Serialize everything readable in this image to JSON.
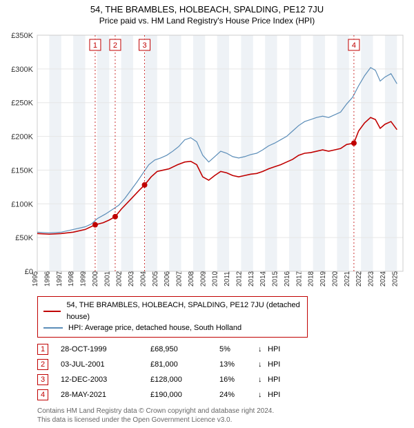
{
  "title": "54, THE BRAMBLES, HOLBEACH, SPALDING, PE12 7JU",
  "subtitle": "Price paid vs. HM Land Registry's House Price Index (HPI)",
  "chart": {
    "type": "line",
    "background_color": "#ffffff",
    "plot_border_color": "#cccccc",
    "grid_color": "#e6e6e6",
    "shade_color": "#eef2f6",
    "title_fontsize": 13,
    "subtitle_fontsize": 12,
    "label_fontsize": 11,
    "x_years": [
      "1995",
      "1996",
      "1997",
      "1998",
      "1999",
      "2000",
      "2001",
      "2002",
      "2003",
      "2004",
      "2005",
      "2006",
      "2007",
      "2008",
      "2009",
      "2010",
      "2011",
      "2012",
      "2013",
      "2014",
      "2015",
      "2016",
      "2017",
      "2018",
      "2019",
      "2020",
      "2021",
      "2022",
      "2023",
      "2024",
      "2025"
    ],
    "y_ticks": [
      0,
      50000,
      100000,
      150000,
      200000,
      250000,
      300000,
      350000
    ],
    "y_tick_labels": [
      "£0",
      "£50K",
      "£100K",
      "£150K",
      "£200K",
      "£250K",
      "£300K",
      "£350K"
    ],
    "ylim": [
      0,
      350000
    ],
    "xlim": [
      1995,
      2025.5
    ],
    "series": [
      {
        "name": "property",
        "label": "54, THE BRAMBLES, HOLBEACH, SPALDING, PE12 7JU (detached house)",
        "color": "#c00000",
        "line_width": 1.6,
        "data": [
          [
            1995,
            56000
          ],
          [
            1996,
            55000
          ],
          [
            1997,
            56000
          ],
          [
            1998,
            58000
          ],
          [
            1999,
            62000
          ],
          [
            1999.83,
            68950
          ],
          [
            2000.5,
            72000
          ],
          [
            2001,
            76000
          ],
          [
            2001.5,
            81000
          ],
          [
            2002,
            92000
          ],
          [
            2002.7,
            105000
          ],
          [
            2003.5,
            120000
          ],
          [
            2003.95,
            128000
          ],
          [
            2004.5,
            140000
          ],
          [
            2005,
            148000
          ],
          [
            2005.5,
            150000
          ],
          [
            2006,
            152000
          ],
          [
            2006.7,
            158000
          ],
          [
            2007.3,
            162000
          ],
          [
            2007.8,
            163000
          ],
          [
            2008.3,
            158000
          ],
          [
            2008.8,
            140000
          ],
          [
            2009.3,
            135000
          ],
          [
            2009.8,
            142000
          ],
          [
            2010.3,
            148000
          ],
          [
            2010.8,
            146000
          ],
          [
            2011.3,
            142000
          ],
          [
            2011.8,
            140000
          ],
          [
            2012.3,
            142000
          ],
          [
            2012.8,
            144000
          ],
          [
            2013.3,
            145000
          ],
          [
            2013.8,
            148000
          ],
          [
            2014.3,
            152000
          ],
          [
            2014.8,
            155000
          ],
          [
            2015.3,
            158000
          ],
          [
            2015.8,
            162000
          ],
          [
            2016.3,
            166000
          ],
          [
            2016.8,
            172000
          ],
          [
            2017.3,
            175000
          ],
          [
            2017.8,
            176000
          ],
          [
            2018.3,
            178000
          ],
          [
            2018.8,
            180000
          ],
          [
            2019.3,
            178000
          ],
          [
            2019.8,
            180000
          ],
          [
            2020.3,
            182000
          ],
          [
            2020.8,
            188000
          ],
          [
            2021.41,
            190000
          ],
          [
            2021.8,
            208000
          ],
          [
            2022.3,
            220000
          ],
          [
            2022.8,
            228000
          ],
          [
            2023.2,
            225000
          ],
          [
            2023.6,
            212000
          ],
          [
            2024.0,
            218000
          ],
          [
            2024.5,
            222000
          ],
          [
            2025.0,
            210000
          ]
        ]
      },
      {
        "name": "hpi",
        "label": "HPI: Average price, detached house, South Holland",
        "color": "#5b8db8",
        "line_width": 1.2,
        "data": [
          [
            1995,
            58000
          ],
          [
            1996,
            57000
          ],
          [
            1997,
            58000
          ],
          [
            1998,
            62000
          ],
          [
            1999,
            66000
          ],
          [
            1999.5,
            70000
          ],
          [
            2000,
            78000
          ],
          [
            2000.7,
            85000
          ],
          [
            2001.3,
            92000
          ],
          [
            2001.8,
            98000
          ],
          [
            2002.3,
            108000
          ],
          [
            2002.8,
            120000
          ],
          [
            2003.3,
            132000
          ],
          [
            2003.8,
            145000
          ],
          [
            2004.3,
            158000
          ],
          [
            2004.8,
            165000
          ],
          [
            2005.3,
            168000
          ],
          [
            2005.8,
            172000
          ],
          [
            2006.3,
            178000
          ],
          [
            2006.8,
            185000
          ],
          [
            2007.3,
            195000
          ],
          [
            2007.8,
            198000
          ],
          [
            2008.3,
            192000
          ],
          [
            2008.8,
            172000
          ],
          [
            2009.3,
            162000
          ],
          [
            2009.8,
            170000
          ],
          [
            2010.3,
            178000
          ],
          [
            2010.8,
            175000
          ],
          [
            2011.3,
            170000
          ],
          [
            2011.8,
            168000
          ],
          [
            2012.3,
            170000
          ],
          [
            2012.8,
            173000
          ],
          [
            2013.3,
            175000
          ],
          [
            2013.8,
            180000
          ],
          [
            2014.3,
            186000
          ],
          [
            2014.8,
            190000
          ],
          [
            2015.3,
            195000
          ],
          [
            2015.8,
            200000
          ],
          [
            2016.3,
            208000
          ],
          [
            2016.8,
            216000
          ],
          [
            2017.3,
            222000
          ],
          [
            2017.8,
            225000
          ],
          [
            2018.3,
            228000
          ],
          [
            2018.8,
            230000
          ],
          [
            2019.3,
            228000
          ],
          [
            2019.8,
            232000
          ],
          [
            2020.3,
            236000
          ],
          [
            2020.8,
            248000
          ],
          [
            2021.3,
            258000
          ],
          [
            2021.8,
            275000
          ],
          [
            2022.3,
            290000
          ],
          [
            2022.8,
            302000
          ],
          [
            2023.2,
            298000
          ],
          [
            2023.6,
            282000
          ],
          [
            2024.0,
            288000
          ],
          [
            2024.5,
            293000
          ],
          [
            2025.0,
            278000
          ]
        ]
      }
    ],
    "sale_markers": [
      {
        "n": "1",
        "year": 1999.83,
        "price": 68950
      },
      {
        "n": "2",
        "year": 2001.5,
        "price": 81000
      },
      {
        "n": "3",
        "year": 2003.95,
        "price": 128000
      },
      {
        "n": "4",
        "year": 2021.41,
        "price": 190000
      }
    ],
    "sale_marker_dot_color": "#c00000",
    "sale_marker_box_border": "#c00000",
    "sale_marker_line_color": "#c00000",
    "shaded_years": [
      1996,
      1998,
      2000,
      2002,
      2004,
      2006,
      2008,
      2010,
      2012,
      2014,
      2016,
      2018,
      2020,
      2022,
      2024
    ]
  },
  "legend": {
    "border_color": "#c00000",
    "items": [
      {
        "color": "#c00000",
        "text": "54, THE BRAMBLES, HOLBEACH, SPALDING, PE12 7JU (detached house)"
      },
      {
        "color": "#5b8db8",
        "text": "HPI: Average price, detached house, South Holland"
      }
    ]
  },
  "sales_table": {
    "rows": [
      {
        "n": "1",
        "date": "28-OCT-1999",
        "price": "£68,950",
        "diff": "5%",
        "arrow": "↓",
        "hpi": "HPI"
      },
      {
        "n": "2",
        "date": "03-JUL-2001",
        "price": "£81,000",
        "diff": "13%",
        "arrow": "↓",
        "hpi": "HPI"
      },
      {
        "n": "3",
        "date": "12-DEC-2003",
        "price": "£128,000",
        "diff": "16%",
        "arrow": "↓",
        "hpi": "HPI"
      },
      {
        "n": "4",
        "date": "28-MAY-2021",
        "price": "£190,000",
        "diff": "24%",
        "arrow": "↓",
        "hpi": "HPI"
      }
    ]
  },
  "footer": {
    "line1": "Contains HM Land Registry data © Crown copyright and database right 2024.",
    "line2": "This data is licensed under the Open Government Licence v3.0."
  }
}
